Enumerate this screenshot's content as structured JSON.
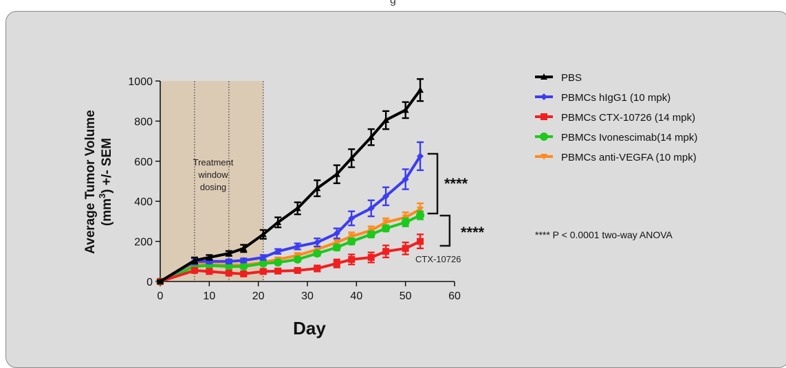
{
  "header": {
    "caption": "g"
  },
  "chart_data": {
    "type": "line",
    "title": "",
    "xlabel": "Day",
    "ylabel_line1": "Average Tumor Volume",
    "ylabel_line2_pre": "(mm",
    "ylabel_line2_sup": "3",
    "ylabel_line2_post": ") +/- SEM",
    "xlim": [
      0,
      60
    ],
    "ylim": [
      0,
      1000
    ],
    "xticks": [
      0,
      10,
      20,
      30,
      40,
      50,
      60
    ],
    "yticks": [
      0,
      200,
      400,
      600,
      800,
      1000
    ],
    "grid": false,
    "legend_position": "right",
    "treatment_window": {
      "x_start": 0,
      "x_end": 21,
      "dotted_lines_x": [
        7,
        14,
        21
      ],
      "label_lines": [
        "Treatment",
        "window",
        "dosing"
      ],
      "color": "#dccbb4"
    },
    "series": [
      {
        "name": "PBS",
        "color": "#000000",
        "marker": "triangle",
        "x": [
          0,
          7,
          10,
          14,
          17,
          21,
          24,
          28,
          32,
          36,
          39,
          43,
          46,
          50,
          53
        ],
        "y": [
          0,
          105,
          120,
          140,
          165,
          235,
          295,
          365,
          465,
          535,
          615,
          720,
          805,
          855,
          955
        ],
        "err": [
          5,
          15,
          12,
          12,
          18,
          22,
          25,
          30,
          40,
          45,
          45,
          40,
          45,
          40,
          55
        ]
      },
      {
        "name": "PBMCs hIgG1 (10 mpk)",
        "color": "#3c3cf0",
        "marker": "diamond",
        "x": [
          0,
          7,
          10,
          14,
          17,
          21,
          24,
          28,
          32,
          36,
          39,
          43,
          46,
          50,
          53
        ],
        "y": [
          0,
          100,
          100,
          100,
          105,
          120,
          150,
          175,
          195,
          240,
          315,
          365,
          425,
          510,
          625
        ],
        "err": [
          5,
          15,
          10,
          10,
          10,
          12,
          12,
          15,
          20,
          25,
          35,
          40,
          45,
          50,
          70
        ]
      },
      {
        "name": "PBMCs CTX-10726 (14 mpk)",
        "color": "#f02020",
        "marker": "square",
        "x": [
          0,
          7,
          10,
          14,
          17,
          21,
          24,
          28,
          32,
          36,
          39,
          43,
          46,
          50,
          53
        ],
        "y": [
          0,
          55,
          50,
          42,
          38,
          50,
          52,
          55,
          65,
          90,
          110,
          120,
          150,
          165,
          200
        ],
        "err": [
          5,
          10,
          8,
          8,
          8,
          10,
          10,
          10,
          15,
          20,
          25,
          25,
          30,
          30,
          35
        ]
      },
      {
        "name": "PBMCs Ivonescimab(14 mpk)",
        "color": "#1ec81e",
        "marker": "circle",
        "x": [
          0,
          7,
          10,
          14,
          17,
          21,
          24,
          28,
          32,
          36,
          39,
          43,
          46,
          50,
          53
        ],
        "y": [
          0,
          75,
          80,
          75,
          75,
          90,
          95,
          110,
          140,
          170,
          200,
          235,
          265,
          295,
          330
        ],
        "err": [
          5,
          10,
          8,
          8,
          8,
          10,
          10,
          10,
          12,
          15,
          15,
          15,
          15,
          20,
          20
        ]
      },
      {
        "name": "PBMCs anti-VEGFA (10 mpk)",
        "color": "#ff8a1e",
        "marker": "triangle-down",
        "x": [
          0,
          7,
          10,
          14,
          17,
          21,
          24,
          28,
          32,
          36,
          39,
          43,
          46,
          50,
          53
        ],
        "y": [
          0,
          85,
          85,
          82,
          82,
          95,
          110,
          130,
          160,
          195,
          225,
          255,
          295,
          320,
          360
        ],
        "err": [
          5,
          10,
          8,
          8,
          8,
          10,
          10,
          12,
          15,
          15,
          20,
          20,
          20,
          25,
          30
        ]
      }
    ],
    "annotations": {
      "sig_upper": "****",
      "sig_lower": "****",
      "ctx_label": "CTX-10726",
      "stats_note": "**** P < 0.0001 two-way ANOVA"
    }
  }
}
